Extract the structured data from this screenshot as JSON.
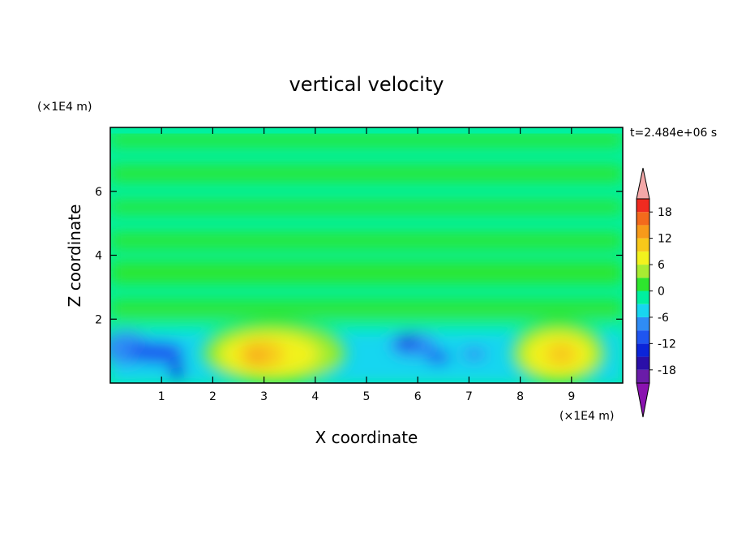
{
  "chart_data": {
    "type": "heatmap",
    "title": "vertical velocity",
    "xlabel": "X coordinate",
    "ylabel": "Z coordinate",
    "x_unit": "(×1E4 m)",
    "y_unit": "(×1E4 m)",
    "time_label": "t=2.484e+06 s",
    "xlim": [
      0,
      10
    ],
    "ylim": [
      0,
      8
    ],
    "x_ticks": [
      1,
      2,
      3,
      4,
      5,
      6,
      7,
      8,
      9
    ],
    "y_ticks": [
      2,
      4,
      6
    ],
    "colorbar": {
      "min": -21,
      "max": 21,
      "tick_labels": [
        "18",
        "12",
        "6",
        "0",
        "-6",
        "-12",
        "-18"
      ],
      "ticks": [
        18,
        12,
        6,
        0,
        -6,
        -12,
        -18
      ],
      "levels": [
        {
          "from": -21,
          "to": -18,
          "color": "#6a1ca8"
        },
        {
          "from": -18,
          "to": -15,
          "color": "#2a0fa8"
        },
        {
          "from": -15,
          "to": -12,
          "color": "#0b24d9"
        },
        {
          "from": -12,
          "to": -9,
          "color": "#1f55f0"
        },
        {
          "from": -9,
          "to": -6,
          "color": "#2f8cf5"
        },
        {
          "from": -6,
          "to": -3,
          "color": "#18d6f0"
        },
        {
          "from": -3,
          "to": 0,
          "color": "#00f0a0"
        },
        {
          "from": 0,
          "to": 3,
          "color": "#2ee62e"
        },
        {
          "from": 3,
          "to": 6,
          "color": "#a8ec32"
        },
        {
          "from": 6,
          "to": 9,
          "color": "#f2f21e"
        },
        {
          "from": 9,
          "to": 12,
          "color": "#f8c81a"
        },
        {
          "from": 12,
          "to": 15,
          "color": "#f79a1a"
        },
        {
          "from": 15,
          "to": 18,
          "color": "#f36a1c"
        },
        {
          "from": 18,
          "to": 21,
          "color": "#ef2b20"
        }
      ],
      "under_color": "#8a12b0",
      "over_color": "#f4a8a8"
    },
    "features": [
      {
        "kind": "updraft",
        "x": 3.0,
        "z": 0.9,
        "peak": 12
      },
      {
        "kind": "updraft",
        "x": 8.8,
        "z": 0.9,
        "peak": 10
      },
      {
        "kind": "downdraft",
        "x": 0.8,
        "z": 1.0,
        "peak": -12
      },
      {
        "kind": "downdraft",
        "x": 5.9,
        "z": 1.2,
        "peak": -14
      },
      {
        "kind": "downdraft",
        "x": 1.3,
        "z": 0.4,
        "peak": -12
      }
    ]
  }
}
